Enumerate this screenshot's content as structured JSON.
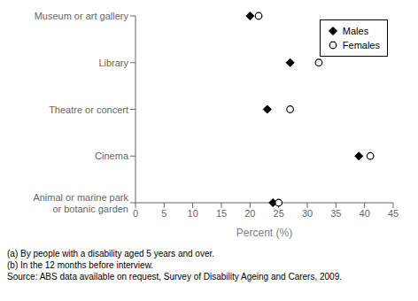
{
  "chart_data": {
    "type": "dot",
    "orientation": "horizontal",
    "categories": [
      "Museum or art gallery",
      "Library",
      "Theatre or concert",
      "Cinema",
      "Animal or marine park\nor botanic garden"
    ],
    "series": [
      {
        "name": "Males",
        "color": "#000000",
        "marker": "diamond",
        "values": [
          20.0,
          27.0,
          23.0,
          39.0,
          24.0
        ]
      },
      {
        "name": "Females",
        "color": "#000000",
        "marker": "circle",
        "values": [
          21.5,
          32.0,
          27.0,
          41.0,
          25.0
        ]
      }
    ],
    "xlabel": "Percent (%)",
    "xlim": [
      0,
      45
    ],
    "xticks": [
      0,
      5,
      10,
      15,
      20,
      25,
      30,
      35,
      40,
      45
    ],
    "legend": "upper right",
    "annotations": [
      "(a) By people with a disability aged 5 years and over.",
      "(b) In the 12 months before interview.",
      "Source: ABS data available on request, Survey of Disability Ageing and Carers, 2009."
    ]
  }
}
